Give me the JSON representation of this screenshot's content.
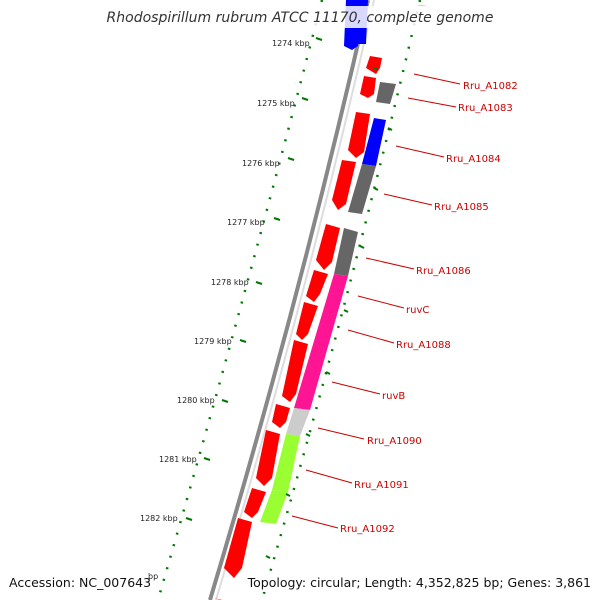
{
  "title": "Rhodospirillum rubrum ATCC 11170, complete genome",
  "footer": {
    "accession": "Accession: NC_007643",
    "topology": "Topology: circular; Length: 4,352,825 bp; Genes: 3,861"
  },
  "ruler_ticks": [
    "1274 kbp",
    "1275 kbp",
    "1276 kbp",
    "1277 kbp",
    "1278 kbp",
    "1279 kbp",
    "1280 kbp",
    "1281 kbp",
    "1282 kbp"
  ],
  "ruler_partial": "bp",
  "gene_labels": [
    "Rru_A1082",
    "Rru_A1083",
    "Rru_A1084",
    "Rru_A1085",
    "Rru_A1086",
    "ruvC",
    "Rru_A1088",
    "ruvB",
    "Rru_A1090",
    "Rru_A1091",
    "Rru_A1092"
  ],
  "colors": {
    "forward_cds": "#ff0000",
    "reverse_cds": "#ff0000",
    "blue_gene": "#0000ff",
    "gray_gene": "#666666",
    "magenta_gene": "#ff1493",
    "lightgray_gene": "#cccccc",
    "green_gene": "#99ff33",
    "label": "#cc0000",
    "tick_dots": "#007700",
    "backbone": "#888888"
  }
}
